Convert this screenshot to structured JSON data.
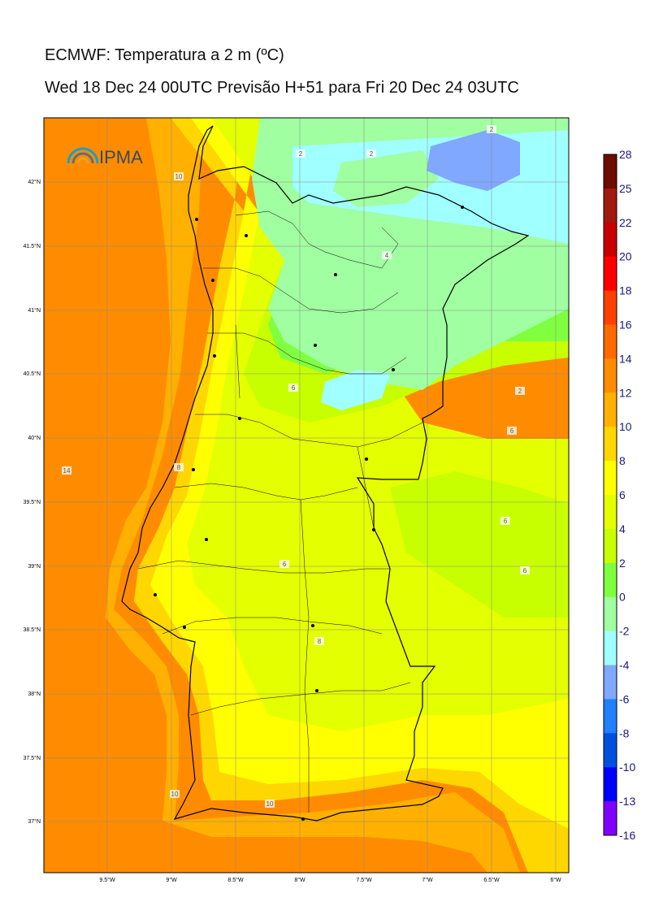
{
  "title_line1": "ECMWF: Temperatura a 2 m (ºC)",
  "title_line2": "Wed 18 Dec 24 00UTC Previsão H+51 para Fri 20 Dec 24 03UTC",
  "logo_text": "IPMA",
  "lat_labels": [
    "42°N",
    "41.5°N",
    "41°N",
    "40.5°N",
    "40°N",
    "39.5°N",
    "39°N",
    "38.5°N",
    "38°N",
    "37.5°N",
    "37°N"
  ],
  "lon_labels": [
    "9.5°W",
    "9°W",
    "8.5°W",
    "8°W",
    "7.5°W",
    "7°W",
    "6.5°W",
    "6°W"
  ],
  "colorbar": {
    "labels": [
      "28",
      "25",
      "22",
      "20",
      "18",
      "16",
      "14",
      "12",
      "10",
      "8",
      "6",
      "4",
      "2",
      "0",
      "-2",
      "-4",
      "-6",
      "-8",
      "-10",
      "-13",
      "-16"
    ],
    "colors": [
      "#6b0d00",
      "#a01a10",
      "#c80000",
      "#ff0000",
      "#ff4000",
      "#ff6a00",
      "#ff8c00",
      "#ffb000",
      "#ffd700",
      "#ffff00",
      "#e4ff00",
      "#c8ff00",
      "#80ff40",
      "#a0ffa0",
      "#a0ffff",
      "#80a8ff",
      "#2080ff",
      "#0050e0",
      "#0000ff",
      "#8000ff",
      "#e000ff"
    ]
  },
  "contour_labels": [
    "10",
    "14",
    "2",
    "2",
    "2",
    "6",
    "8",
    "6",
    "6",
    "6",
    "8",
    "10",
    "10",
    "2",
    "4",
    "6"
  ],
  "colors": {
    "sea_warm": "#ff8c00",
    "sea_mid": "#ffb000",
    "coast_yellow": "#ffd700",
    "yellow": "#ffff00",
    "yellow_green": "#e4ff00",
    "light_green": "#c8ff00",
    "green": "#80ff40",
    "pale_green": "#a0ffa0",
    "cyan": "#a0ffff",
    "blue": "#80a8ff"
  }
}
